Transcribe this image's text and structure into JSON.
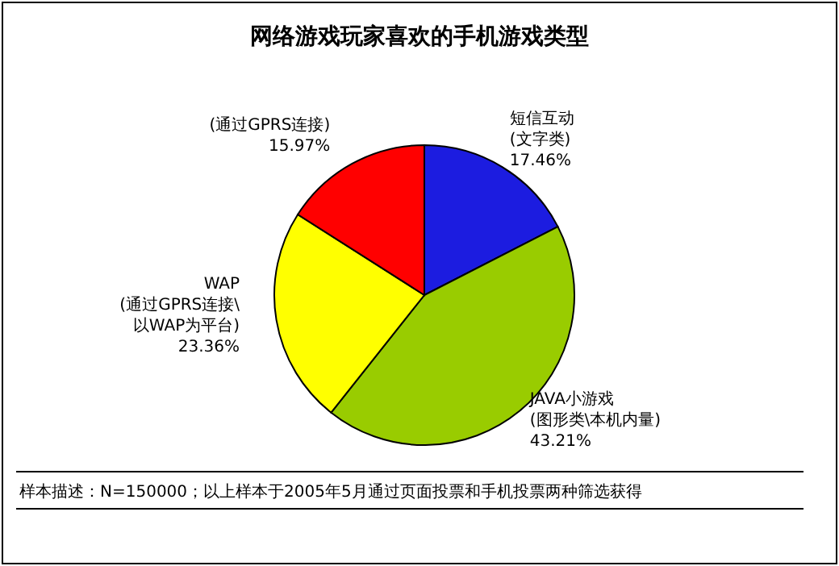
{
  "chart_data": {
    "type": "pie",
    "title": "网络游戏玩家喜欢的手机游戏类型",
    "categories": [
      "短信互动\n(文字类)",
      "JAVA小游戏\n(图形类\\本机内量)",
      "WAP\n(通过GPRS连接\\\n以WAP为平台)",
      "(通过GPRS连接)"
    ],
    "values": [
      17.46,
      43.21,
      23.36,
      15.97
    ],
    "colors": [
      "#1c1ce0",
      "#99cc00",
      "#ffff00",
      "#ff0000"
    ],
    "value_labels": [
      "17.46%",
      "43.21%",
      "23.36%",
      "15.97%"
    ],
    "annotations": [
      "样本描述：N=150000；以上样本于2005年5月通过页面投票和手机投票两种筛选获得"
    ]
  }
}
